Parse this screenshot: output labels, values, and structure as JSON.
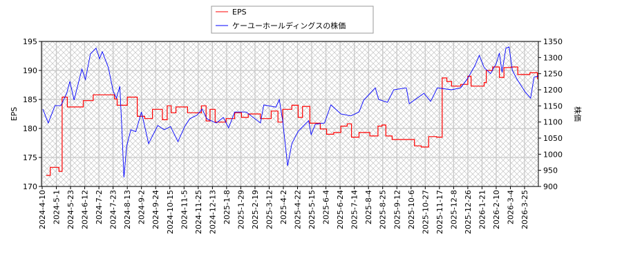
{
  "chart_data": {
    "type": "line",
    "title": "",
    "xlabel": "",
    "ylabel_left": "EPS",
    "ylabel_right": "株価",
    "ylim_left": [
      170,
      195
    ],
    "ylim_right": [
      900,
      1350
    ],
    "yticks_left": [
      170,
      175,
      180,
      185,
      190,
      195
    ],
    "yticks_right": [
      900,
      950,
      1000,
      1050,
      1100,
      1150,
      1200,
      1250,
      1300,
      1350
    ],
    "xticks": [
      "2024-4-10",
      "2024-5-1",
      "2024-5-23",
      "2024-6-12",
      "2024-7-2",
      "2024-7-23",
      "2024-8-13",
      "2024-9-2",
      "2024-9-24",
      "2024-10-15",
      "2024-11-5",
      "2024-11-25",
      "2024-12-13",
      "2025-1-8",
      "2025-1-29",
      "2025-2-19",
      "2025-3-12",
      "2025-4-2",
      "2025-4-22",
      "2025-5-15",
      "2025-6-4",
      "2025-6-24",
      "2025-7-14",
      "2025-8-4",
      "2025-8-25",
      "2025-9-12",
      "2025-10-6",
      "2025-10-27",
      "2025-11-17",
      "2025-12-8",
      "2025-12-26",
      "2026-1-21",
      "2026-2-10",
      "2026-3-4",
      "2026-3-25"
    ],
    "grid": true,
    "legend_placement": "top-center",
    "series": [
      {
        "name": "EPS",
        "axis": "left",
        "color": "#ff0000",
        "step": true,
        "points": [
          [
            "2024-4-16",
            171.9
          ],
          [
            "2024-4-22",
            173.3
          ],
          [
            "2024-5-5",
            172.6
          ],
          [
            "2024-5-9",
            172.6
          ],
          [
            "2024-5-10",
            185.4
          ],
          [
            "2024-5-18",
            183.7
          ],
          [
            "2024-6-8",
            183.7
          ],
          [
            "2024-6-10",
            184.8
          ],
          [
            "2024-6-23",
            184.8
          ],
          [
            "2024-6-24",
            185.8
          ],
          [
            "2024-7-24",
            185.8
          ],
          [
            "2024-7-25",
            185.1
          ],
          [
            "2024-7-29",
            184.0
          ],
          [
            "2024-8-12",
            184.0
          ],
          [
            "2024-8-13",
            185.4
          ],
          [
            "2024-8-26",
            185.4
          ],
          [
            "2024-8-27",
            182.1
          ],
          [
            "2024-9-7",
            181.7
          ],
          [
            "2024-9-19",
            183.3
          ],
          [
            "2024-10-3",
            183.3
          ],
          [
            "2024-10-4",
            181.5
          ],
          [
            "2024-10-10",
            181.5
          ],
          [
            "2024-10-11",
            183.9
          ],
          [
            "2024-10-17",
            182.7
          ],
          [
            "2024-10-24",
            183.7
          ],
          [
            "2024-11-10",
            182.7
          ],
          [
            "2024-11-29",
            183.9
          ],
          [
            "2024-12-4",
            183.9
          ],
          [
            "2024-12-5",
            181.3
          ],
          [
            "2024-12-10",
            183.3
          ],
          [
            "2024-12-18",
            181.1
          ],
          [
            "2025-1-7",
            181.7
          ],
          [
            "2025-1-20",
            182.7
          ],
          [
            "2025-1-30",
            181.9
          ],
          [
            "2025-2-9",
            182.5
          ],
          [
            "2025-2-27",
            181.7
          ],
          [
            "2025-3-15",
            183.0
          ],
          [
            "2025-3-24",
            183.0
          ],
          [
            "2025-3-25",
            181.1
          ],
          [
            "2025-3-31",
            181.1
          ],
          [
            "2025-4-1",
            183.3
          ],
          [
            "2025-4-14",
            184.0
          ],
          [
            "2025-4-22",
            184.0
          ],
          [
            "2025-4-23",
            181.9
          ],
          [
            "2025-4-30",
            183.8
          ],
          [
            "2025-5-9",
            183.8
          ],
          [
            "2025-5-12",
            180.9
          ],
          [
            "2025-5-27",
            179.9
          ],
          [
            "2025-6-5",
            179.0
          ],
          [
            "2025-6-15",
            179.3
          ],
          [
            "2025-6-25",
            180.4
          ],
          [
            "2025-7-4",
            180.8
          ],
          [
            "2025-7-9",
            180.8
          ],
          [
            "2025-7-10",
            178.5
          ],
          [
            "2025-7-21",
            179.3
          ],
          [
            "2025-8-6",
            178.7
          ],
          [
            "2025-8-18",
            180.4
          ],
          [
            "2025-8-24",
            180.6
          ],
          [
            "2025-8-29",
            178.7
          ],
          [
            "2025-9-6",
            178.1
          ],
          [
            "2025-9-22",
            178.1
          ],
          [
            "2025-10-9",
            178.1
          ],
          [
            "2025-10-11",
            177.0
          ],
          [
            "2025-10-21",
            176.8
          ],
          [
            "2025-11-1",
            178.6
          ],
          [
            "2025-11-13",
            178.5
          ],
          [
            "2025-11-19",
            178.5
          ],
          [
            "2025-11-21",
            188.7
          ],
          [
            "2025-11-28",
            188.1
          ],
          [
            "2025-12-5",
            187.3
          ],
          [
            "2025-12-17",
            187.6
          ],
          [
            "2025-12-26",
            189.0
          ],
          [
            "2026-1-1",
            187.3
          ],
          [
            "2026-1-24",
            187.9
          ],
          [
            "2026-1-27",
            190.0
          ],
          [
            "2026-2-5",
            190.6
          ],
          [
            "2026-2-15",
            188.8
          ],
          [
            "2026-2-22",
            190.5
          ],
          [
            "2026-3-5",
            190.6
          ],
          [
            "2026-3-15",
            189.3
          ],
          [
            "2026-4-2",
            189.6
          ],
          [
            "2026-4-13",
            188.5
          ]
        ]
      },
      {
        "name": "ケーユーホールディングスの株価",
        "axis": "right",
        "color": "#0000ff",
        "step": false,
        "points": [
          [
            "2024-4-11",
            1140
          ],
          [
            "2024-4-19",
            1097
          ],
          [
            "2024-4-29",
            1151
          ],
          [
            "2024-5-8",
            1151
          ],
          [
            "2024-5-17",
            1189
          ],
          [
            "2024-5-22",
            1226
          ],
          [
            "2024-5-28",
            1168
          ],
          [
            "2024-6-8",
            1264
          ],
          [
            "2024-6-13",
            1232
          ],
          [
            "2024-6-20",
            1311
          ],
          [
            "2024-6-28",
            1329
          ],
          [
            "2024-7-3",
            1296
          ],
          [
            "2024-7-7",
            1318
          ],
          [
            "2024-7-16",
            1269
          ],
          [
            "2024-7-23",
            1196
          ],
          [
            "2024-7-28",
            1174
          ],
          [
            "2024-8-2",
            1211
          ],
          [
            "2024-8-5",
            1076
          ],
          [
            "2024-8-8",
            928
          ],
          [
            "2024-8-12",
            1024
          ],
          [
            "2024-8-18",
            1076
          ],
          [
            "2024-8-25",
            1070
          ],
          [
            "2024-9-2",
            1131
          ],
          [
            "2024-9-13",
            1033
          ],
          [
            "2024-9-27",
            1089
          ],
          [
            "2024-10-7",
            1076
          ],
          [
            "2024-10-16",
            1086
          ],
          [
            "2024-10-27",
            1039
          ],
          [
            "2024-11-6",
            1086
          ],
          [
            "2024-11-13",
            1110
          ],
          [
            "2024-11-23",
            1121
          ],
          [
            "2024-11-30",
            1140
          ],
          [
            "2024-12-6",
            1110
          ],
          [
            "2024-12-20",
            1097
          ],
          [
            "2025-1-2",
            1114
          ],
          [
            "2025-1-11",
            1082
          ],
          [
            "2025-1-20",
            1131
          ],
          [
            "2025-2-6",
            1131
          ],
          [
            "2025-2-27",
            1097
          ],
          [
            "2025-3-4",
            1153
          ],
          [
            "2025-3-22",
            1146
          ],
          [
            "2025-3-27",
            1170
          ],
          [
            "2025-4-1",
            1104
          ],
          [
            "2025-4-8",
            964
          ],
          [
            "2025-4-14",
            1033
          ],
          [
            "2025-4-23",
            1071
          ],
          [
            "2025-5-10",
            1104
          ],
          [
            "2025-5-14",
            1061
          ],
          [
            "2025-5-20",
            1093
          ],
          [
            "2025-6-2",
            1097
          ],
          [
            "2025-6-11",
            1153
          ],
          [
            "2025-6-25",
            1125
          ],
          [
            "2025-7-9",
            1119
          ],
          [
            "2025-7-21",
            1131
          ],
          [
            "2025-7-28",
            1168
          ],
          [
            "2025-8-14",
            1206
          ],
          [
            "2025-8-19",
            1170
          ],
          [
            "2025-8-31",
            1161
          ],
          [
            "2025-9-8",
            1200
          ],
          [
            "2025-9-28",
            1206
          ],
          [
            "2025-10-3",
            1157
          ],
          [
            "2025-10-11",
            1168
          ],
          [
            "2025-10-25",
            1189
          ],
          [
            "2025-11-4",
            1164
          ],
          [
            "2025-11-14",
            1206
          ],
          [
            "2025-12-5",
            1200
          ],
          [
            "2025-12-17",
            1206
          ],
          [
            "2025-12-26",
            1236
          ],
          [
            "2026-1-8",
            1275
          ],
          [
            "2026-1-16",
            1307
          ],
          [
            "2026-1-24",
            1269
          ],
          [
            "2026-2-2",
            1250
          ],
          [
            "2026-2-10",
            1281
          ],
          [
            "2026-2-15",
            1314
          ],
          [
            "2026-2-19",
            1254
          ],
          [
            "2026-2-25",
            1329
          ],
          [
            "2026-3-2",
            1333
          ],
          [
            "2026-3-7",
            1260
          ],
          [
            "2026-3-14",
            1232
          ],
          [
            "2026-3-26",
            1193
          ],
          [
            "2026-4-3",
            1174
          ],
          [
            "2026-4-8",
            1239
          ],
          [
            "2026-4-14",
            1243
          ]
        ]
      }
    ]
  }
}
